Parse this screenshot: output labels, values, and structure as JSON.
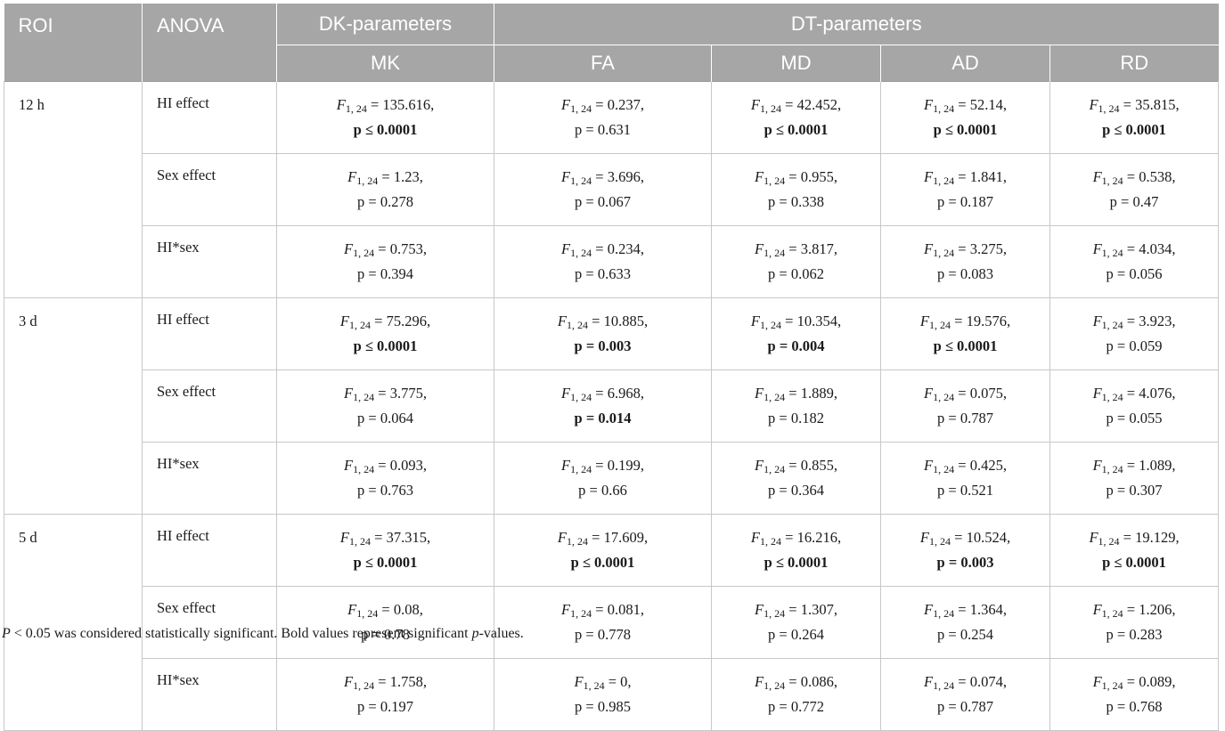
{
  "header": {
    "roi": "ROI",
    "anova": "ANOVA",
    "dk_group": "DK-parameters",
    "dt_group": "DT-parameters",
    "columns": [
      "MK",
      "FA",
      "MD",
      "AD",
      "RD"
    ]
  },
  "f_symbol": "F",
  "f_subscript": "1, 24",
  "groups": [
    {
      "roi": "12 h",
      "rows": [
        {
          "anova": "HI effect",
          "cells": [
            {
              "f": "135.616",
              "p": "p ≤ 0.0001",
              "sig": true
            },
            {
              "f": "0.237",
              "p": "p = 0.631",
              "sig": false
            },
            {
              "f": "42.452",
              "p": "p ≤ 0.0001",
              "sig": true
            },
            {
              "f": "52.14",
              "p": "p ≤ 0.0001",
              "sig": true
            },
            {
              "f": "35.815",
              "p": "p ≤ 0.0001",
              "sig": true
            }
          ]
        },
        {
          "anova": "Sex effect",
          "cells": [
            {
              "f": "1.23",
              "p": "p = 0.278",
              "sig": false
            },
            {
              "f": "3.696",
              "p": "p = 0.067",
              "sig": false
            },
            {
              "f": "0.955",
              "p": "p = 0.338",
              "sig": false
            },
            {
              "f": "1.841",
              "p": "p = 0.187",
              "sig": false
            },
            {
              "f": "0.538",
              "p": "p = 0.47",
              "sig": false
            }
          ]
        },
        {
          "anova": "HI*sex",
          "cells": [
            {
              "f": "0.753",
              "p": "p = 0.394",
              "sig": false
            },
            {
              "f": "0.234",
              "p": "p = 0.633",
              "sig": false
            },
            {
              "f": "3.817",
              "p": "p = 0.062",
              "sig": false
            },
            {
              "f": "3.275",
              "p": "p = 0.083",
              "sig": false
            },
            {
              "f": "4.034",
              "p": "p = 0.056",
              "sig": false
            }
          ]
        }
      ]
    },
    {
      "roi": "3 d",
      "rows": [
        {
          "anova": "HI effect",
          "cells": [
            {
              "f": "75.296",
              "p": "p ≤ 0.0001",
              "sig": true
            },
            {
              "f": "10.885",
              "p": "p = 0.003",
              "sig": true
            },
            {
              "f": "10.354",
              "p": "p = 0.004",
              "sig": true
            },
            {
              "f": "19.576",
              "p": "p ≤ 0.0001",
              "sig": true
            },
            {
              "f": "3.923",
              "p": "p = 0.059",
              "sig": false
            }
          ]
        },
        {
          "anova": "Sex effect",
          "cells": [
            {
              "f": "3.775",
              "p": "p = 0.064",
              "sig": false
            },
            {
              "f": "6.968",
              "p": "p = 0.014",
              "sig": true
            },
            {
              "f": "1.889",
              "p": "p = 0.182",
              "sig": false
            },
            {
              "f": "0.075",
              "p": "p = 0.787",
              "sig": false
            },
            {
              "f": "4.076",
              "p": "p = 0.055",
              "sig": false
            }
          ]
        },
        {
          "anova": "HI*sex",
          "cells": [
            {
              "f": "0.093",
              "p": "p = 0.763",
              "sig": false
            },
            {
              "f": "0.199",
              "p": "p = 0.66",
              "sig": false
            },
            {
              "f": "0.855",
              "p": "p = 0.364",
              "sig": false
            },
            {
              "f": "0.425",
              "p": "p = 0.521",
              "sig": false
            },
            {
              "f": "1.089",
              "p": "p = 0.307",
              "sig": false
            }
          ]
        }
      ]
    },
    {
      "roi": "5 d",
      "rows": [
        {
          "anova": "HI effect",
          "cells": [
            {
              "f": "37.315",
              "p": "p ≤ 0.0001",
              "sig": true
            },
            {
              "f": "17.609",
              "p": "p ≤ 0.0001",
              "sig": true
            },
            {
              "f": "16.216",
              "p": "p ≤ 0.0001",
              "sig": true
            },
            {
              "f": "10.524",
              "p": "p = 0.003",
              "sig": true
            },
            {
              "f": "19.129",
              "p": "p ≤ 0.0001",
              "sig": true
            }
          ]
        },
        {
          "anova": "Sex effect",
          "cells": [
            {
              "f": "0.08",
              "p": "p = 0.78",
              "sig": false
            },
            {
              "f": "0.081",
              "p": "p = 0.778",
              "sig": false
            },
            {
              "f": "1.307",
              "p": "p = 0.264",
              "sig": false
            },
            {
              "f": "1.364",
              "p": "p = 0.254",
              "sig": false
            },
            {
              "f": "1.206",
              "p": "p = 0.283",
              "sig": false
            }
          ]
        },
        {
          "anova": "HI*sex",
          "cells": [
            {
              "f": "1.758",
              "p": "p = 0.197",
              "sig": false
            },
            {
              "f": "0",
              "p": "p = 0.985",
              "sig": false
            },
            {
              "f": "0.086",
              "p": "p = 0.772",
              "sig": false
            },
            {
              "f": "0.074",
              "p": "p = 0.787",
              "sig": false
            },
            {
              "f": "0.089",
              "p": "p = 0.768",
              "sig": false
            }
          ]
        }
      ]
    }
  ],
  "footnote": "P < 0.05 was considered statistically significant. Bold values represent significant p-values."
}
